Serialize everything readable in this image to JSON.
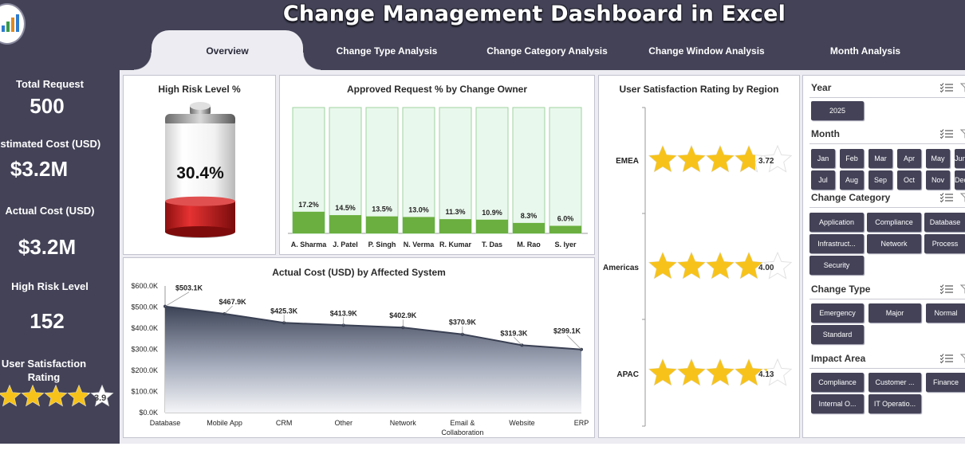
{
  "header": {
    "title": "Change Management Dashboard in Excel"
  },
  "tabs": [
    {
      "label": "Overview",
      "active": true
    },
    {
      "label": "Change Type Analysis",
      "active": false
    },
    {
      "label": "Change Category Analysis",
      "active": false
    },
    {
      "label": "Change Window Analysis",
      "active": false
    },
    {
      "label": "Month Analysis",
      "active": false
    }
  ],
  "kpis": {
    "total_request": {
      "label": "Total Request",
      "value": "500"
    },
    "estimated_cost": {
      "label": "Estimated Cost (USD)",
      "value": "$3.2M"
    },
    "actual_cost": {
      "label": "Actual Cost (USD)",
      "value": "$3.2M"
    },
    "high_risk": {
      "label": "High Risk Level",
      "value": "152"
    },
    "satisfaction": {
      "label": "User Satisfaction Rating",
      "value": "3.9",
      "rating": 3.9,
      "max": 5
    }
  },
  "colors": {
    "navy": "#434257",
    "background": "#ececf2",
    "bar_fill": "#6aaf3f",
    "bar_track": "#e9f8ec",
    "star": "#f7c31b",
    "battery_red": "#c81d1d"
  },
  "chart_data": [
    {
      "type": "gauge",
      "title": "High Risk Level %",
      "value": 30.4,
      "value_label": "30.4%"
    },
    {
      "type": "bar",
      "title": "Approved Request % by Change Owner",
      "categories": [
        "A. Sharma",
        "J. Patel",
        "P. Singh",
        "N. Verma",
        "R. Kumar",
        "T. Das",
        "M. Rao",
        "S. Iyer"
      ],
      "values": [
        17.2,
        14.5,
        13.5,
        13.0,
        11.3,
        10.9,
        8.3,
        6.0
      ],
      "labels": [
        "17.2%",
        "14.5%",
        "13.5%",
        "13.0%",
        "11.3%",
        "10.9%",
        "8.3%",
        "6.0%"
      ],
      "ylim": [
        0,
        100
      ]
    },
    {
      "type": "area",
      "title": "Actual Cost (USD) by Affected System",
      "categories": [
        "Database",
        "Mobile App",
        "CRM",
        "Other",
        "Network",
        "Email & Collaboration",
        "Website",
        "ERP"
      ],
      "values": [
        503.1,
        467.9,
        425.3,
        413.9,
        402.9,
        370.9,
        319.3,
        299.1
      ],
      "labels": [
        "$503.1K",
        "$467.9K",
        "$425.3K",
        "$413.9K",
        "$402.9K",
        "$370.9K",
        "$319.3K",
        "$299.1K"
      ],
      "yticks": [
        "$0.0K",
        "$100.0K",
        "$200.0K",
        "$300.0K",
        "$400.0K",
        "$500.0K",
        "$600.0K"
      ],
      "ylim": [
        0,
        600
      ]
    },
    {
      "type": "rating",
      "title": "User Satisfaction Rating by Region",
      "categories": [
        "EMEA",
        "Americas",
        "APAC"
      ],
      "values": [
        3.72,
        4.0,
        4.13
      ],
      "labels": [
        "3.72",
        "4.00",
        "4.13"
      ],
      "max": 5
    }
  ],
  "slicers": {
    "year": {
      "title": "Year",
      "items": [
        "2025"
      ]
    },
    "month": {
      "title": "Month",
      "items": [
        "Jan",
        "Feb",
        "Mar",
        "Apr",
        "May",
        "Jun",
        "Jul",
        "Aug",
        "Sep",
        "Oct",
        "Nov",
        "Dec"
      ]
    },
    "change_category": {
      "title": "Change Category",
      "items": [
        "Application",
        "Compliance",
        "Database",
        "Infrastruct...",
        "Network",
        "Process",
        "Security"
      ]
    },
    "change_type": {
      "title": "Change Type",
      "items": [
        "Emergency",
        "Major",
        "Normal",
        "Standard"
      ]
    },
    "impact_area": {
      "title": "Impact Area",
      "items": [
        "Compliance",
        "Customer ...",
        "Finance",
        "Internal O...",
        "IT Operatio..."
      ]
    }
  }
}
